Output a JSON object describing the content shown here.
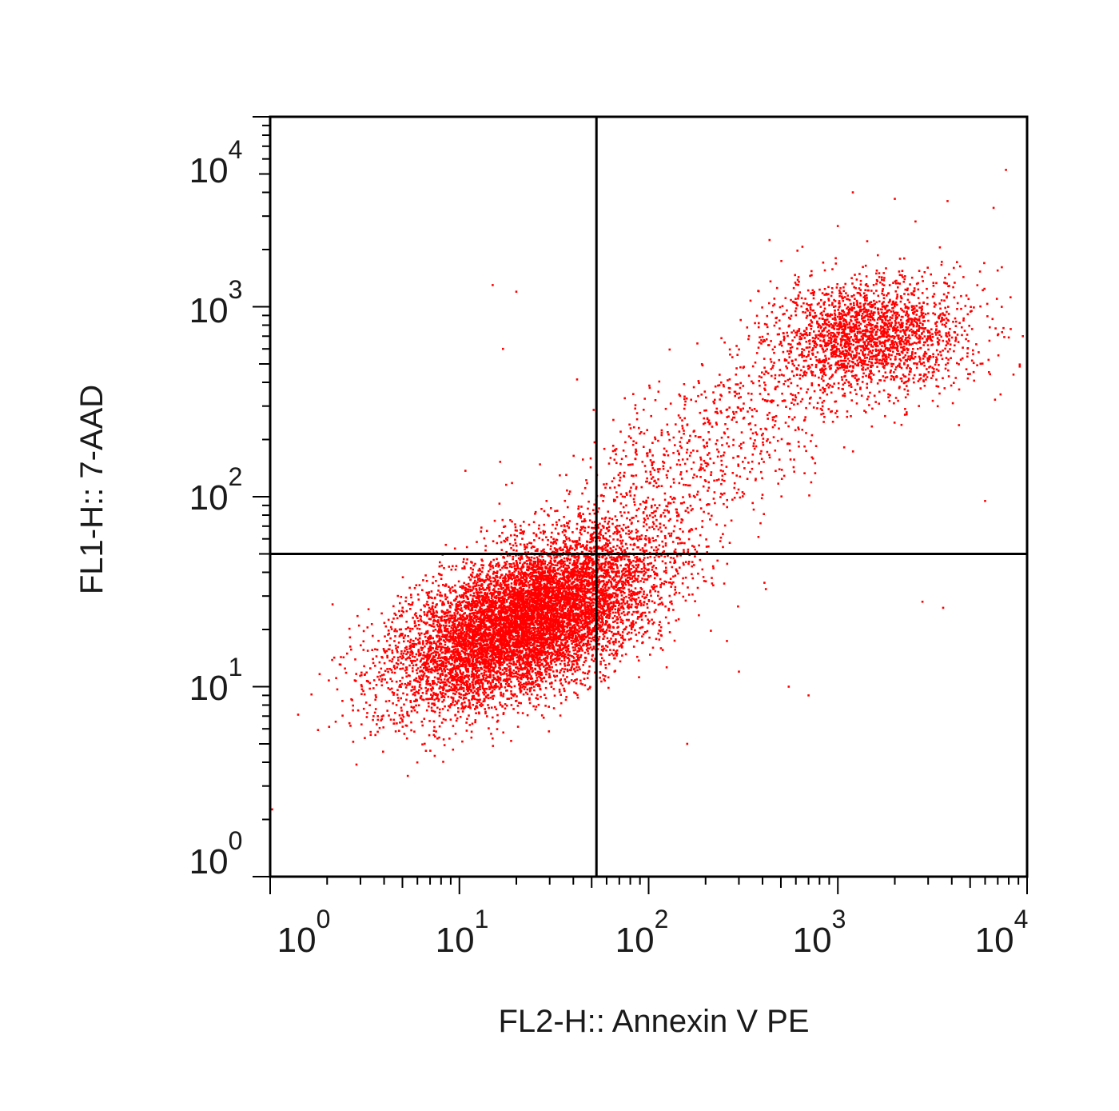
{
  "chart_data": {
    "type": "scatter",
    "title": "",
    "xlabel": "FL2-H:: Annexin V PE",
    "ylabel": "FL1-H:: 7-AAD",
    "x_scale": "log",
    "y_scale": "log",
    "xlim": [
      1,
      10000
    ],
    "ylim": [
      1,
      10000
    ],
    "grid": false,
    "legend": "none",
    "point_color": "#ff0000",
    "axis_color": "#000000",
    "x_ticks": [
      {
        "base": "10",
        "exp": "0"
      },
      {
        "base": "10",
        "exp": "1"
      },
      {
        "base": "10",
        "exp": "2"
      },
      {
        "base": "10",
        "exp": "3"
      },
      {
        "base": "10",
        "exp": "4"
      }
    ],
    "y_ticks": [
      {
        "base": "10",
        "exp": "0"
      },
      {
        "base": "10",
        "exp": "1"
      },
      {
        "base": "10",
        "exp": "2"
      },
      {
        "base": "10",
        "exp": "3"
      },
      {
        "base": "10",
        "exp": "4"
      }
    ],
    "quadrant_gates": {
      "x": 53,
      "y": 50
    },
    "populations": [
      {
        "center_x": 22,
        "center_y": 22,
        "sd_log_x": 0.34,
        "sd_log_y": 0.22,
        "correlation": 0.55,
        "count": 9000
      },
      {
        "center_x": 1500,
        "center_y": 700,
        "sd_log_x": 0.26,
        "sd_log_y": 0.15,
        "correlation": 0.05,
        "count": 2100
      },
      {
        "center_x": 180,
        "center_y": 160,
        "sd_log_x": 0.5,
        "sd_log_y": 0.4,
        "correlation": 0.8,
        "count": 1100
      }
    ],
    "points": [
      [
        15,
        1300
      ],
      [
        20,
        1200
      ],
      [
        17,
        600
      ],
      [
        1200,
        4000
      ],
      [
        2000,
        3700
      ],
      [
        3800,
        3600
      ],
      [
        300,
        12
      ],
      [
        700,
        9
      ],
      [
        550,
        10
      ],
      [
        2800,
        28
      ],
      [
        3600,
        26
      ],
      [
        6000,
        95
      ],
      [
        9500,
        700
      ],
      [
        160,
        5
      ]
    ]
  }
}
